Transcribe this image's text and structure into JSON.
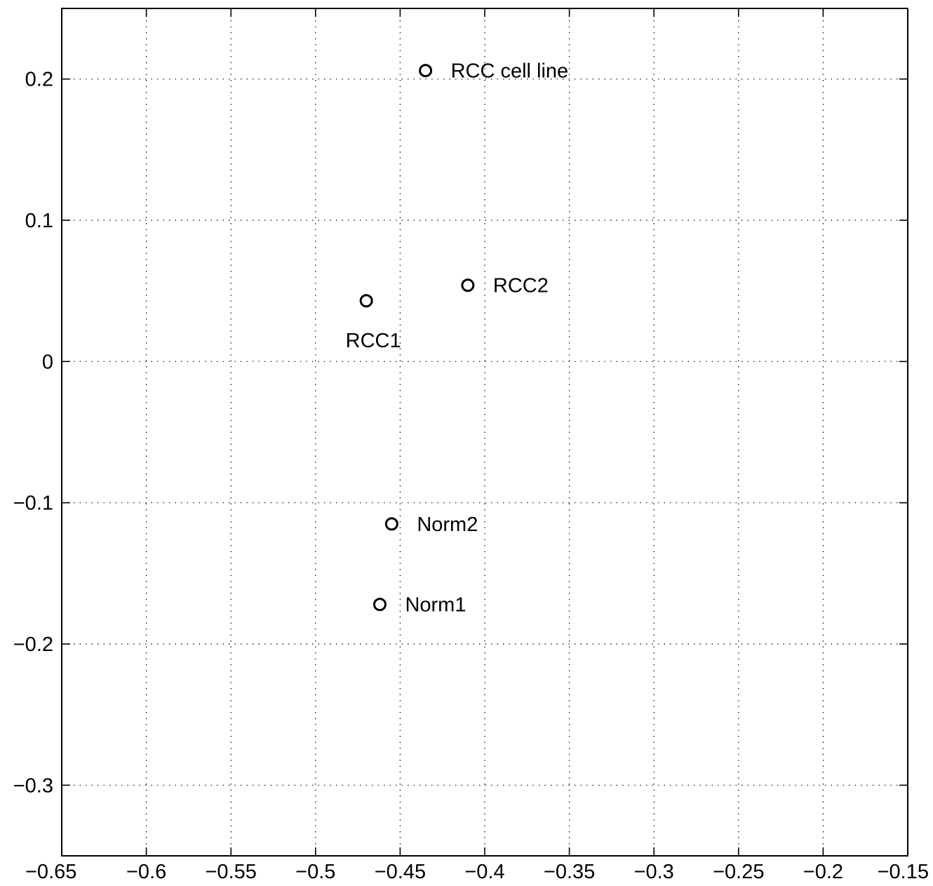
{
  "chart_data": {
    "type": "scatter",
    "title": "",
    "xlabel": "",
    "ylabel": "",
    "xlim": [
      -0.65,
      -0.15
    ],
    "ylim": [
      -0.35,
      0.25
    ],
    "grid": true,
    "marker": "open-circle",
    "x_ticks": [
      -0.65,
      -0.6,
      -0.55,
      -0.5,
      -0.45,
      -0.4,
      -0.35,
      -0.3,
      -0.25,
      -0.2,
      -0.15
    ],
    "x_tick_labels": [
      "−0.65",
      "−0.6",
      "−0.55",
      "−0.5",
      "−0.45",
      "−0.4",
      "−0.35",
      "−0.3",
      "−0.25",
      "−0.2",
      "−0.15"
    ],
    "y_ticks": [
      0.2,
      0.1,
      0,
      -0.1,
      -0.2,
      -0.3
    ],
    "y_tick_labels": [
      "0.2",
      "0.1",
      "0",
      "−0.1",
      "−0.2",
      "−0.3"
    ],
    "points": [
      {
        "label": "RCC cell line",
        "x": -0.435,
        "y": 0.206,
        "label_position": "right"
      },
      {
        "label": "RCC2",
        "x": -0.41,
        "y": 0.054,
        "label_position": "right"
      },
      {
        "label": "RCC1",
        "x": -0.47,
        "y": 0.043,
        "label_position": "below"
      },
      {
        "label": "Norm2",
        "x": -0.455,
        "y": -0.115,
        "label_position": "right"
      },
      {
        "label": "Norm1",
        "x": -0.462,
        "y": -0.172,
        "label_position": "right"
      }
    ]
  }
}
